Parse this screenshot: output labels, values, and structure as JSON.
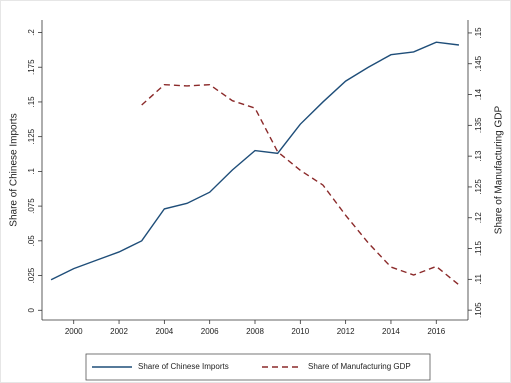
{
  "chart_data": {
    "type": "line",
    "y_label": "Share of Chinese Imports",
    "y2_label": "Share of Manufacturing GDP",
    "x": [
      1999,
      2000,
      2001,
      2002,
      2003,
      2004,
      2005,
      2006,
      2007,
      2008,
      2009,
      2010,
      2011,
      2012,
      2013,
      2014,
      2015,
      2016,
      2017
    ],
    "xlim": [
      1998.6,
      2017.4
    ],
    "xticks": [
      2000,
      2002,
      2004,
      2006,
      2008,
      2010,
      2012,
      2014,
      2016
    ],
    "ylim": [
      -0.007,
      0.209
    ],
    "yticks": [
      0,
      {
        "value": 0.025,
        "label": ".025"
      },
      {
        "value": 0.05,
        "label": ".05"
      },
      {
        "value": 0.075,
        "label": ".075"
      },
      {
        "value": 0.1,
        "label": ".1"
      },
      {
        "value": 0.125,
        "label": ".125"
      },
      {
        "value": 0.15,
        "label": ".15"
      },
      {
        "value": 0.175,
        "label": ".175"
      },
      {
        "value": 0.2,
        "label": ".2"
      }
    ],
    "y2lim": [
      0.1034,
      0.1521
    ],
    "y2ticks": [
      {
        "value": 0.105,
        "label": ".105"
      },
      {
        "value": 0.11,
        "label": ".11"
      },
      {
        "value": 0.115,
        "label": ".115"
      },
      {
        "value": 0.12,
        "label": ".12"
      },
      {
        "value": 0.125,
        "label": ".125"
      },
      {
        "value": 0.13,
        "label": ".13"
      },
      {
        "value": 0.135,
        "label": ".135"
      },
      {
        "value": 0.14,
        "label": ".14"
      },
      {
        "value": 0.145,
        "label": ".145"
      },
      {
        "value": 0.15,
        "label": ".15"
      }
    ],
    "legend": "bottom",
    "series": [
      {
        "name": "Share of Chinese Imports",
        "color": "#1f4e79",
        "style": "solid",
        "values": [
          0.022,
          0.03,
          0.036,
          0.042,
          0.05,
          0.073,
          0.077,
          0.085,
          0.101,
          0.115,
          0.113,
          0.134,
          0.15,
          0.165,
          0.175,
          0.184,
          0.186,
          0.193,
          0.191
        ]
      },
      {
        "name": "Share of Manufacturing GDP",
        "color": "#8b2a2a",
        "style": "dashed",
        "axis": "y2",
        "values": [
          null,
          null,
          null,
          null,
          0.1383,
          0.1416,
          0.1414,
          0.1416,
          0.139,
          0.1378,
          0.1307,
          0.1277,
          0.1253,
          0.1204,
          0.1159,
          0.112,
          0.1107,
          0.1121,
          0.1091
        ]
      }
    ]
  }
}
